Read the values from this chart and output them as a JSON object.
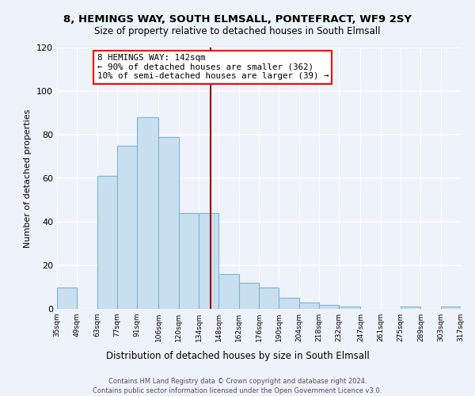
{
  "title1": "8, HEMINGS WAY, SOUTH ELMSALL, PONTEFRACT, WF9 2SY",
  "title2": "Size of property relative to detached houses in South Elmsall",
  "xlabel": "Distribution of detached houses by size in South Elmsall",
  "ylabel": "Number of detached properties",
  "bin_edges": [
    35,
    49,
    63,
    77,
    91,
    106,
    120,
    134,
    148,
    162,
    176,
    190,
    204,
    218,
    232,
    247,
    261,
    275,
    289,
    303,
    317
  ],
  "bin_labels": [
    "35sqm",
    "49sqm",
    "63sqm",
    "77sqm",
    "91sqm",
    "106sqm",
    "120sqm",
    "134sqm",
    "148sqm",
    "162sqm",
    "176sqm",
    "190sqm",
    "204sqm",
    "218sqm",
    "232sqm",
    "247sqm",
    "261sqm",
    "275sqm",
    "289sqm",
    "303sqm",
    "317sqm"
  ],
  "counts": [
    10,
    0,
    61,
    75,
    88,
    79,
    44,
    44,
    16,
    12,
    10,
    5,
    3,
    2,
    1,
    0,
    0,
    1,
    0,
    1
  ],
  "bar_color": "#c8dff0",
  "bar_edge_color": "#7fb3d3",
  "property_size": 142,
  "vline_color": "#990000",
  "annotation_line1": "8 HEMINGS WAY: 142sqm",
  "annotation_line2": "← 90% of detached houses are smaller (362)",
  "annotation_line3": "10% of semi-detached houses are larger (39) →",
  "footnote1": "Contains HM Land Registry data © Crown copyright and database right 2024.",
  "footnote2": "Contains public sector information licensed under the Open Government Licence v3.0.",
  "ylim": [
    0,
    120
  ],
  "bg_color": "#eef2f9"
}
